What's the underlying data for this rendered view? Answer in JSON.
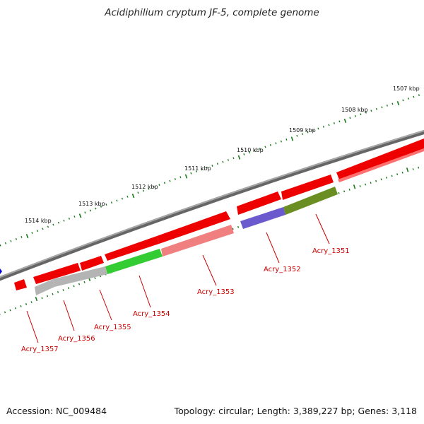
{
  "title": "Acidiphilium cryptum JF-5, complete genome",
  "footer": {
    "accession": "Accession: NC_009484",
    "topology": "Topology: circular; Length: 3,389,227 bp; Genes: 3,118"
  },
  "colors": {
    "forward_strand": "#ee0000",
    "label": "#cc0000",
    "backbone": "#777777",
    "tick": "#1a7a1a",
    "reverse_strand_genes": {
      "Acry_1351": "#6b8e23",
      "Acry_1352": "#6a5acd",
      "Acry_1353": "#f08080",
      "Acry_1354": "#33cc33",
      "Acry_1355": "#b4b4b4",
      "Acry_1356": "#b4b4b4"
    }
  },
  "ruler": {
    "labels": [
      "1507 kbp",
      "1508 kbp",
      "1509 kbp",
      "1510 kbp",
      "1511 kbp",
      "1512 kbp",
      "1513 kbp",
      "1514 kbp"
    ]
  },
  "genes": [
    {
      "name": "Acry_1351",
      "strand": "reverse"
    },
    {
      "name": "Acry_1352",
      "strand": "reverse"
    },
    {
      "name": "Acry_1353",
      "strand": "reverse"
    },
    {
      "name": "Acry_1354",
      "strand": "reverse"
    },
    {
      "name": "Acry_1355",
      "strand": "reverse"
    },
    {
      "name": "Acry_1356",
      "strand": "reverse"
    },
    {
      "name": "Acry_1357",
      "strand": "forward"
    }
  ]
}
